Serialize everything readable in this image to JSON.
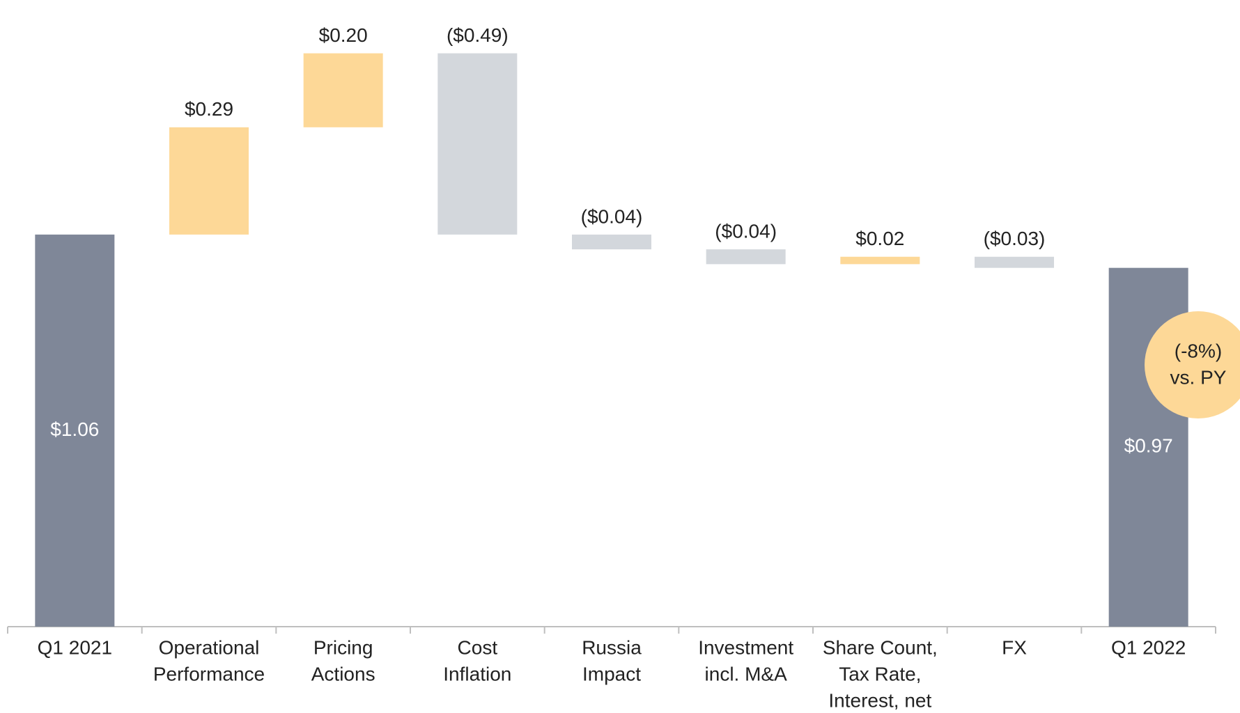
{
  "chart_data": {
    "type": "waterfall",
    "categories": [
      [
        "Q1 2021"
      ],
      [
        "Operational",
        "Performance"
      ],
      [
        "Pricing",
        "Actions"
      ],
      [
        "Cost",
        "Inflation"
      ],
      [
        "Russia",
        "Impact"
      ],
      [
        "Investment",
        "incl. M&A"
      ],
      [
        "Share Count,",
        "Tax Rate,",
        "Interest, net"
      ],
      [
        "FX"
      ],
      [
        "Q1 2022"
      ]
    ],
    "values": [
      1.06,
      0.29,
      0.2,
      -0.49,
      -0.04,
      -0.04,
      0.02,
      -0.03,
      0.97
    ],
    "value_labels": [
      "$1.06",
      "$0.29",
      "$0.20",
      "($0.49)",
      "($0.04)",
      "($0.04)",
      "$0.02",
      "($0.03)",
      "$0.97"
    ],
    "totals": [
      true,
      false,
      false,
      false,
      false,
      false,
      false,
      false,
      true
    ],
    "total_color": "#7f8798",
    "increase_color": "#fdd897",
    "decrease_color": "#d3d7dc",
    "ylim": [
      0,
      1.6
    ],
    "annotation": {
      "lines": [
        "(-8%)",
        "vs. PY"
      ],
      "color": "#fdd897"
    }
  }
}
